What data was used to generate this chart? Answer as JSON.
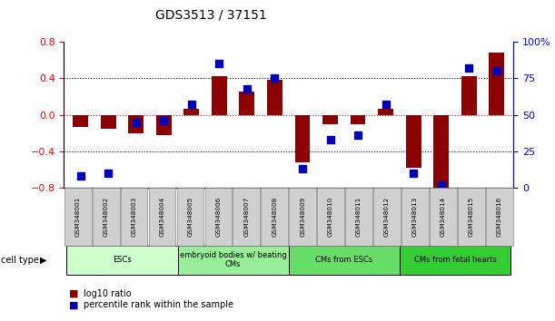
{
  "title": "GDS3513 / 37151",
  "samples": [
    "GSM348001",
    "GSM348002",
    "GSM348003",
    "GSM348004",
    "GSM348005",
    "GSM348006",
    "GSM348007",
    "GSM348008",
    "GSM348009",
    "GSM348010",
    "GSM348011",
    "GSM348012",
    "GSM348013",
    "GSM348014",
    "GSM348015",
    "GSM348016"
  ],
  "log10_ratio": [
    -0.13,
    -0.15,
    -0.2,
    -0.22,
    0.07,
    0.42,
    0.25,
    0.38,
    -0.52,
    -0.1,
    -0.1,
    0.07,
    -0.58,
    -0.82,
    0.42,
    0.68
  ],
  "percentile_rank": [
    8,
    10,
    45,
    46,
    57,
    85,
    68,
    75,
    13,
    33,
    36,
    57,
    10,
    2,
    82,
    80
  ],
  "ylim_left": [
    -0.8,
    0.8
  ],
  "ylim_right": [
    0,
    100
  ],
  "yticks_left": [
    -0.8,
    -0.4,
    0.0,
    0.4,
    0.8
  ],
  "yticks_right": [
    0,
    25,
    50,
    75,
    100
  ],
  "ytick_labels_right": [
    "0",
    "25",
    "50",
    "75",
    "100%"
  ],
  "bar_color": "#8B0000",
  "dot_color": "#0000bb",
  "cell_groups": [
    {
      "label": "ESCs",
      "start": 0,
      "end": 3,
      "color": "#ccffcc"
    },
    {
      "label": "embryoid bodies w/ beating\nCMs",
      "start": 4,
      "end": 7,
      "color": "#99ee99"
    },
    {
      "label": "CMs from ESCs",
      "start": 8,
      "end": 11,
      "color": "#66dd66"
    },
    {
      "label": "CMs from fetal hearts",
      "start": 12,
      "end": 15,
      "color": "#33cc33"
    }
  ],
  "legend_items": [
    {
      "label": "log10 ratio",
      "color": "#8B0000"
    },
    {
      "label": "percentile rank within the sample",
      "color": "#0000bb"
    }
  ],
  "bar_width": 0.55,
  "dot_size": 35,
  "sample_box_color": "#d0d0d0",
  "sample_box_edge": "#888888"
}
